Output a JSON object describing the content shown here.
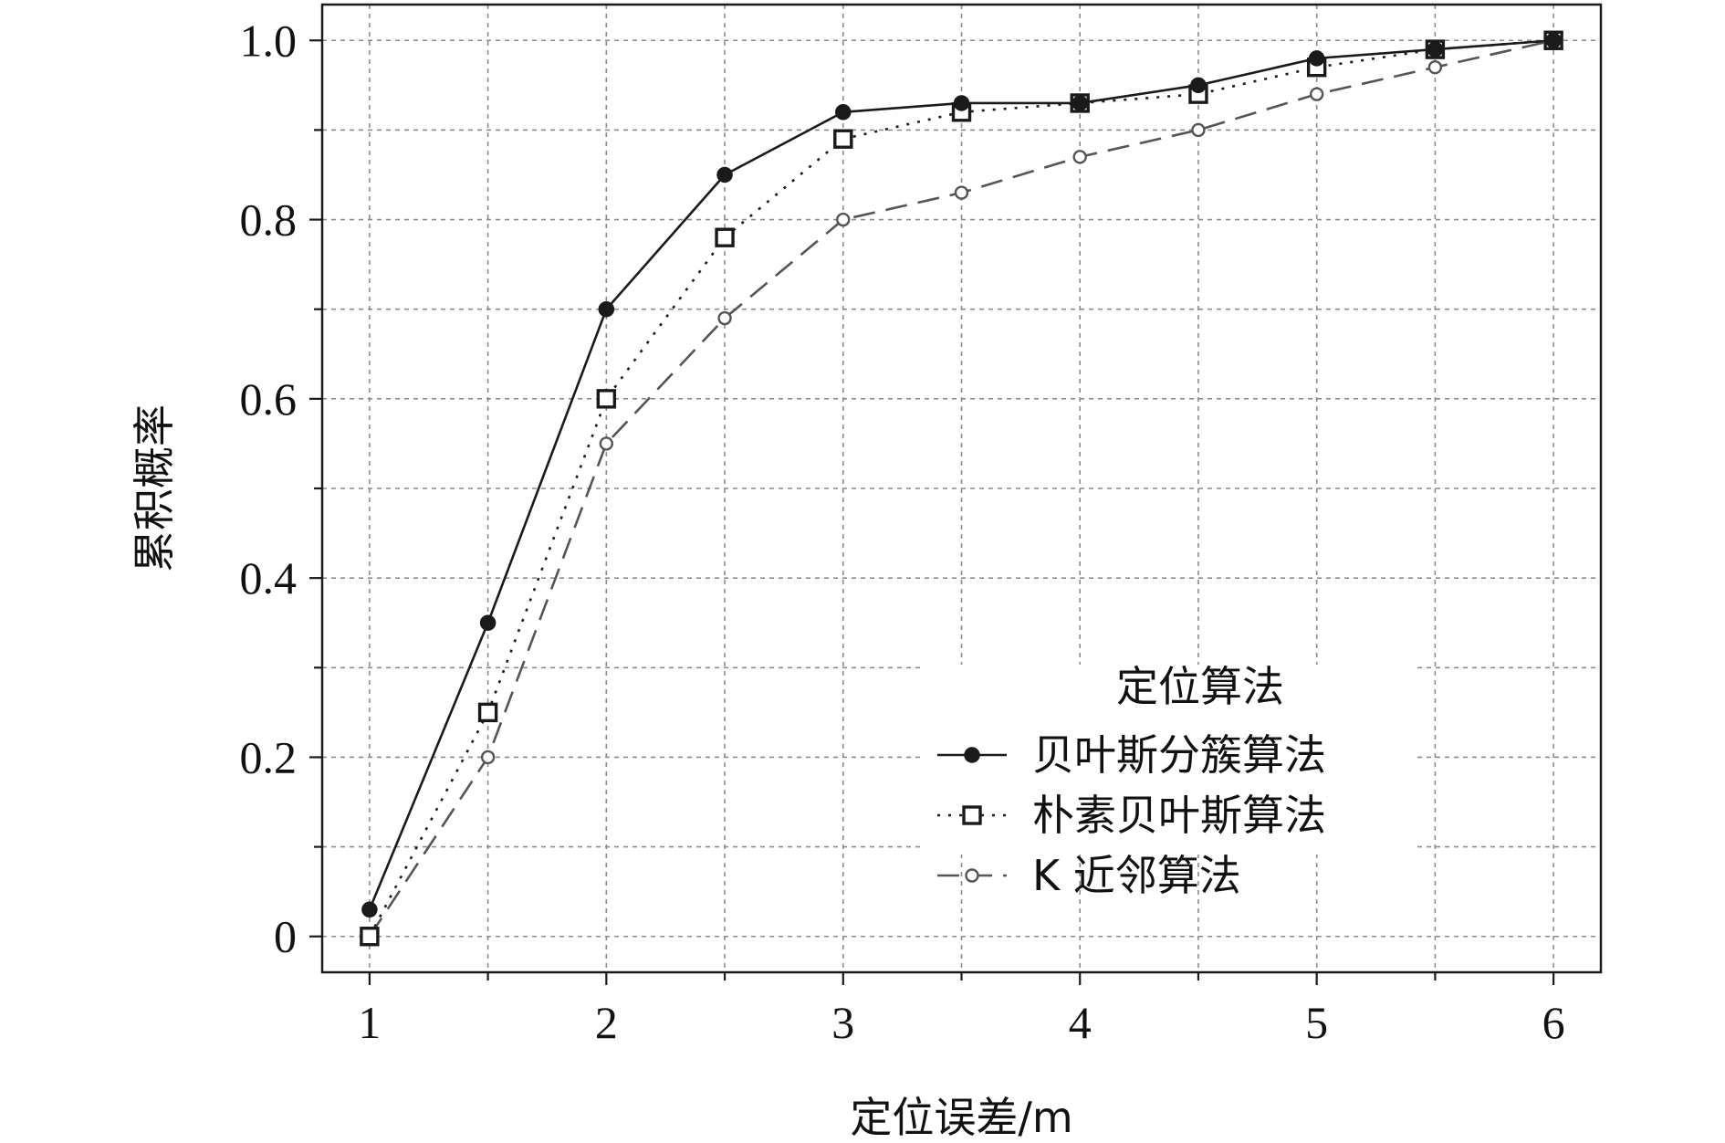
{
  "chart_data": {
    "type": "line",
    "xlabel": "定位误差/m",
    "ylabel": "累积概率",
    "x": [
      1,
      1.5,
      2,
      2.5,
      3,
      3.5,
      4,
      4.5,
      5,
      5.5,
      6
    ],
    "xlim": [
      0.8,
      6.2
    ],
    "ylim": [
      -0.04,
      1.04
    ],
    "xticks": [
      1,
      2,
      3,
      4,
      5,
      6
    ],
    "xtick_labels": [
      "1",
      "2",
      "3",
      "4",
      "5",
      "6"
    ],
    "yticks": [
      0,
      0.2,
      0.4,
      0.6,
      0.8,
      1.0
    ],
    "ytick_labels": [
      "0",
      "0.2",
      "0.4",
      "0.6",
      "0.8",
      "1.0"
    ],
    "grid": true,
    "legend_title": "定位算法",
    "legend_position": "bottom-right",
    "series": [
      {
        "name": "贝叶斯分簇算法",
        "values": [
          0.03,
          0.35,
          0.7,
          0.85,
          0.92,
          0.93,
          0.93,
          0.95,
          0.98,
          0.99,
          1.0
        ],
        "line_style": "solid",
        "marker": "filled-circle",
        "color": "#1a1a1a"
      },
      {
        "name": "朴素贝叶斯算法",
        "values": [
          0.0,
          0.25,
          0.6,
          0.78,
          0.89,
          0.92,
          0.93,
          0.94,
          0.97,
          0.99,
          1.0
        ],
        "line_style": "dotted",
        "marker": "open-square",
        "color": "#1a1a1a"
      },
      {
        "name": "K 近邻算法",
        "values": [
          0.0,
          0.2,
          0.55,
          0.69,
          0.8,
          0.83,
          0.87,
          0.9,
          0.94,
          0.97,
          1.0
        ],
        "line_style": "dashed",
        "marker": "open-circle",
        "color": "#555555"
      }
    ]
  }
}
